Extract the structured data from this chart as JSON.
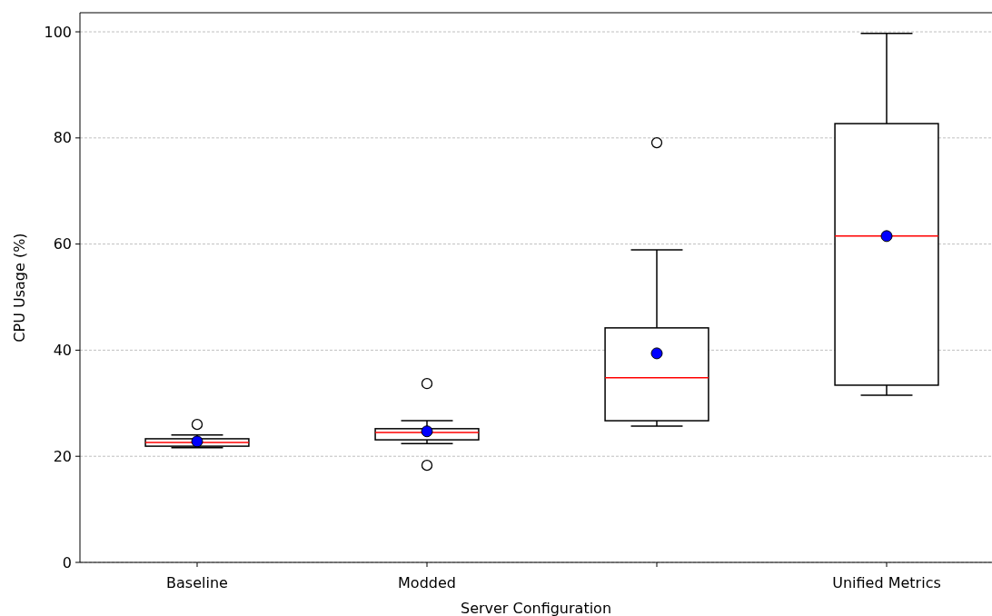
{
  "chart_data": {
    "type": "box",
    "xlabel": "Server Configuration",
    "ylabel": "CPU Usage (%)",
    "categories": [
      "Baseline",
      "Modded",
      null,
      "Unified Metrics"
    ],
    "boxes": [
      {
        "low": 21.6,
        "q1": 21.9,
        "median": 22.6,
        "q3": 23.3,
        "high": 24.0,
        "mean": 22.8,
        "outliers": [
          26.0
        ]
      },
      {
        "low": 22.4,
        "q1": 23.1,
        "median": 24.5,
        "q3": 25.2,
        "high": 26.7,
        "mean": 24.7,
        "outliers": [
          33.7,
          18.3
        ]
      },
      {
        "low": 25.7,
        "q1": 26.7,
        "median": 34.8,
        "q3": 44.2,
        "high": 58.9,
        "mean": 39.4,
        "outliers": [
          79.1
        ]
      },
      {
        "low": 31.5,
        "q1": 33.4,
        "median": 61.5,
        "q3": 82.7,
        "high": 99.7,
        "mean": 61.5
      }
    ],
    "color": "#000000",
    "ylim": [
      0,
      103.6
    ],
    "yticks": [
      0,
      20,
      40,
      60,
      80,
      100
    ],
    "grid": "y"
  }
}
